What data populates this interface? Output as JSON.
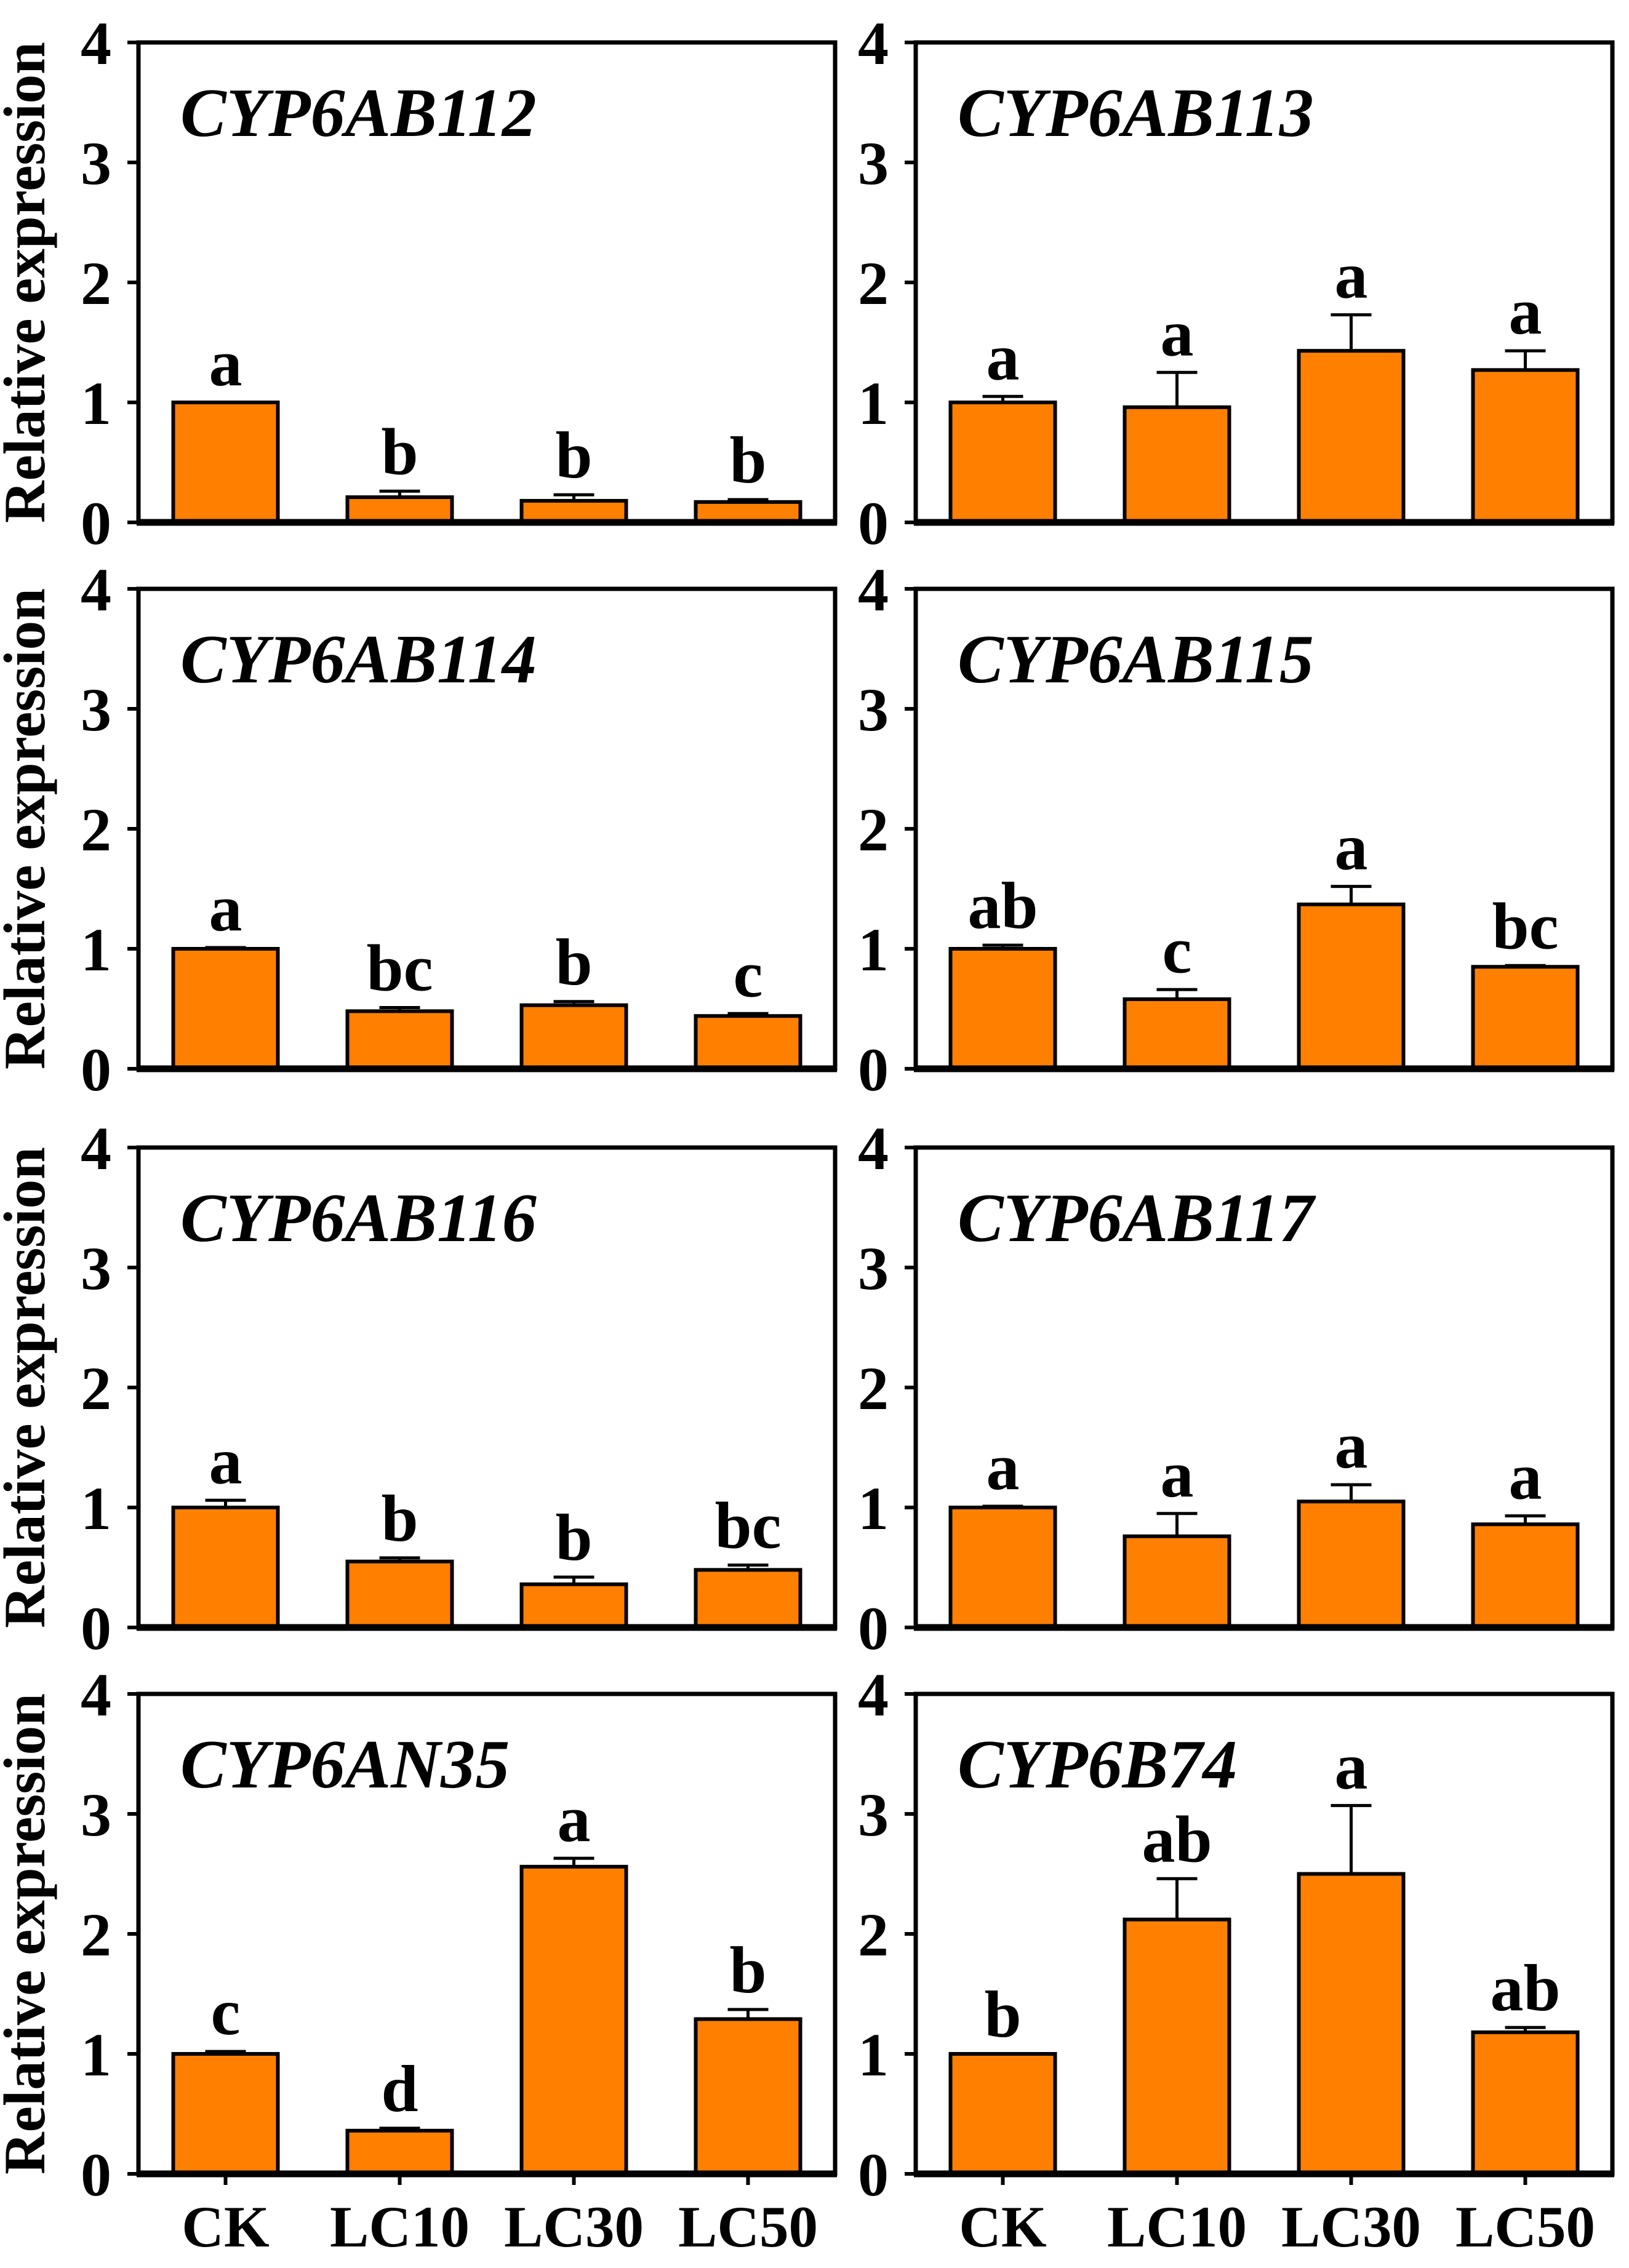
{
  "figure": {
    "ylabel": "Relative expression",
    "categories": [
      "CK",
      "LC10",
      "LC30",
      "LC50"
    ],
    "yticks": [
      "0",
      "1",
      "2",
      "3",
      "4"
    ],
    "bar_color": "#FF8000",
    "axis_color": "#000000",
    "background_color": "#FFFFFF"
  },
  "chart_data": [
    {
      "type": "bar",
      "title": "CYP6AB112",
      "ylabel": "Relative expression",
      "categories": [
        "CK",
        "LC10",
        "LC30",
        "LC50"
      ],
      "ylim": [
        0,
        4
      ],
      "values": [
        1.0,
        0.21,
        0.18,
        0.17
      ],
      "errors": [
        0.0,
        0.05,
        0.05,
        0.02
      ],
      "letters": [
        "a",
        "b",
        "b",
        "b"
      ]
    },
    {
      "type": "bar",
      "title": "CYP6AB113",
      "ylabel": "Relative expression",
      "categories": [
        "CK",
        "LC10",
        "LC30",
        "LC50"
      ],
      "ylim": [
        0,
        4
      ],
      "values": [
        1.0,
        0.96,
        1.43,
        1.27
      ],
      "errors": [
        0.05,
        0.29,
        0.3,
        0.16
      ],
      "letters": [
        "a",
        "a",
        "a",
        "a"
      ]
    },
    {
      "type": "bar",
      "title": "CYP6AB114",
      "ylabel": "Relative expression",
      "categories": [
        "CK",
        "LC10",
        "LC30",
        "LC50"
      ],
      "ylim": [
        0,
        4
      ],
      "values": [
        1.0,
        0.48,
        0.53,
        0.44
      ],
      "errors": [
        0.01,
        0.03,
        0.03,
        0.02
      ],
      "letters": [
        "a",
        "bc",
        "b",
        "c"
      ]
    },
    {
      "type": "bar",
      "title": "CYP6AB115",
      "ylabel": "Relative expression",
      "categories": [
        "CK",
        "LC10",
        "LC30",
        "LC50"
      ],
      "ylim": [
        0,
        4
      ],
      "values": [
        1.0,
        0.58,
        1.37,
        0.85
      ],
      "errors": [
        0.03,
        0.08,
        0.15,
        0.01
      ],
      "letters": [
        "ab",
        "c",
        "a",
        "bc"
      ]
    },
    {
      "type": "bar",
      "title": "CYP6AB116",
      "ylabel": "Relative expression",
      "categories": [
        "CK",
        "LC10",
        "LC30",
        "LC50"
      ],
      "ylim": [
        0,
        4
      ],
      "values": [
        1.0,
        0.55,
        0.36,
        0.48
      ],
      "errors": [
        0.06,
        0.03,
        0.06,
        0.04
      ],
      "letters": [
        "a",
        "b",
        "b",
        "bc"
      ]
    },
    {
      "type": "bar",
      "title": "CYP6AB117",
      "ylabel": "Relative expression",
      "categories": [
        "CK",
        "LC10",
        "LC30",
        "LC50"
      ],
      "ylim": [
        0,
        4
      ],
      "values": [
        1.0,
        0.76,
        1.05,
        0.86
      ],
      "errors": [
        0.01,
        0.19,
        0.14,
        0.07
      ],
      "letters": [
        "a",
        "a",
        "a",
        "a"
      ]
    },
    {
      "type": "bar",
      "title": "CYP6AN35",
      "ylabel": "Relative expression",
      "categories": [
        "CK",
        "LC10",
        "LC30",
        "LC50"
      ],
      "ylim": [
        0,
        4
      ],
      "values": [
        1.0,
        0.36,
        2.56,
        1.29
      ],
      "errors": [
        0.02,
        0.02,
        0.07,
        0.08
      ],
      "letters": [
        "c",
        "d",
        "a",
        "b"
      ]
    },
    {
      "type": "bar",
      "title": "CYP6B74",
      "ylabel": "Relative expression",
      "categories": [
        "CK",
        "LC10",
        "LC30",
        "LC50"
      ],
      "ylim": [
        0,
        4
      ],
      "values": [
        1.0,
        2.12,
        2.5,
        1.18
      ],
      "errors": [
        0.0,
        0.34,
        0.57,
        0.04
      ],
      "letters": [
        "b",
        "ab",
        "a",
        "ab"
      ]
    }
  ]
}
